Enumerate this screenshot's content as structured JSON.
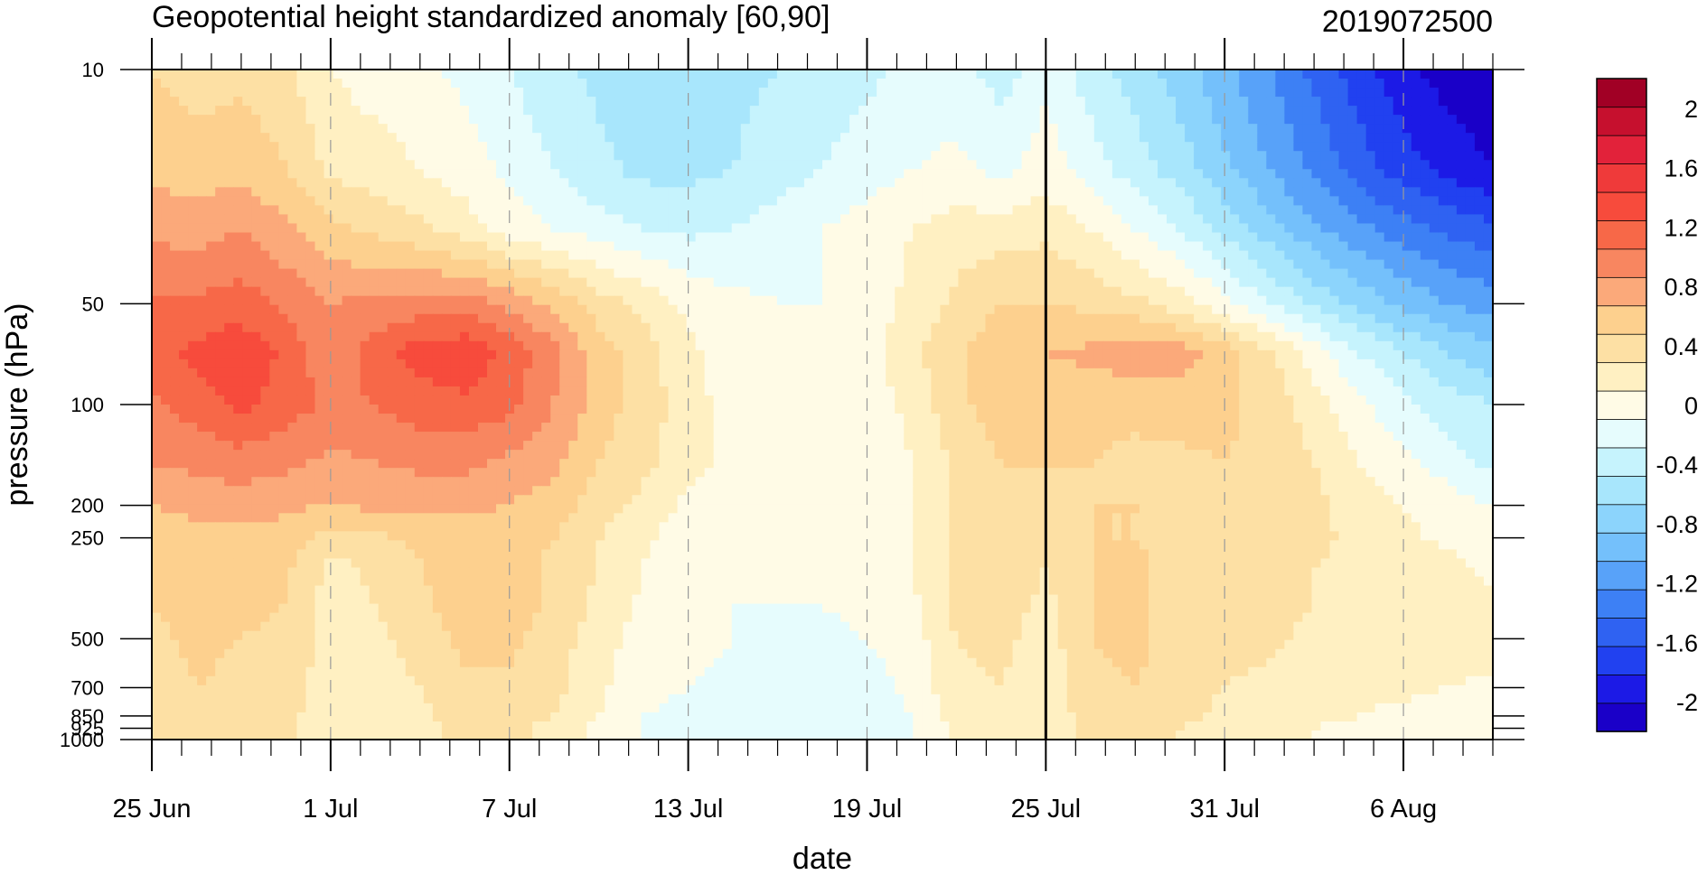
{
  "chart_data": {
    "type": "heatmap",
    "title": "Geopotential height standardized anomaly [60,90]",
    "subtitle": "2019072500",
    "xlabel": "date",
    "ylabel": "pressure (hPa)",
    "x_ticks": [
      "25 Jun",
      "1 Jul",
      "7 Jul",
      "13 Jul",
      "19 Jul",
      "25 Jul",
      "31 Jul",
      "6 Aug"
    ],
    "x_tick_days": [
      0,
      6,
      12,
      18,
      24,
      30,
      36,
      42
    ],
    "x_range_days": [
      0,
      45
    ],
    "y_ticks": [
      "10",
      "50",
      "100",
      "200",
      "250",
      "500",
      "700",
      "850",
      "925",
      "1000"
    ],
    "y_tick_values": [
      10,
      50,
      100,
      200,
      250,
      500,
      700,
      850,
      925,
      1000
    ],
    "y_range": [
      10,
      1000
    ],
    "y_scale": "log",
    "y_reversed": true,
    "forecast_marker_day": 30,
    "grid_days": [
      6,
      12,
      18,
      24,
      36,
      42
    ],
    "colorbar": {
      "levels": [
        -2.2,
        -2.0,
        -1.8,
        -1.6,
        -1.4,
        -1.2,
        -1.0,
        -0.8,
        -0.6,
        -0.4,
        -0.2,
        0,
        0.2,
        0.4,
        0.6,
        0.8,
        1.0,
        1.2,
        1.4,
        1.6,
        1.8,
        2.0,
        2.2
      ],
      "labels": [
        "-2",
        "-1.6",
        "-1.2",
        "-0.8",
        "-0.4",
        "0",
        "0.4",
        "0.8",
        "1.2",
        "1.6",
        "2"
      ],
      "label_values": [
        -2,
        -1.6,
        -1.2,
        -0.8,
        -0.4,
        0,
        0.4,
        0.8,
        1.2,
        1.6,
        2
      ],
      "colors": [
        "#1a00c8",
        "#1c1ae6",
        "#2141f0",
        "#2f62f2",
        "#3d80f5",
        "#58a2f9",
        "#74c0fb",
        "#8cd4fc",
        "#a8e6fc",
        "#c6f3fd",
        "#e6fcfd",
        "#fffbe6",
        "#fff0c2",
        "#fde0a4",
        "#fdd08e",
        "#fba97a",
        "#f88660",
        "#f76848",
        "#f74b3c",
        "#ef3a3a",
        "#e2223a",
        "#c6102e",
        "#a10025"
      ]
    },
    "columns_days": [
      0,
      1.5,
      3,
      4.5,
      6,
      7.5,
      9,
      10.5,
      12,
      13.5,
      15,
      16.5,
      18,
      19.5,
      21,
      22.5,
      24,
      25.5,
      27,
      28.5,
      30,
      31.5,
      33,
      34.5,
      36,
      37.5,
      39,
      40.5,
      42,
      43.5,
      45
    ],
    "rows_hpa": [
      10,
      20,
      30,
      50,
      70,
      100,
      150,
      200,
      250,
      300,
      400,
      500,
      700,
      850,
      925,
      1000
    ],
    "values": [
      [
        0.6,
        0.5,
        0.55,
        0.45,
        0.2,
        0.1,
        0.05,
        -0.05,
        -0.2,
        -0.35,
        -0.45,
        -0.5,
        -0.5,
        -0.45,
        -0.4,
        -0.3,
        -0.25,
        -0.15,
        -0.1,
        -0.3,
        -0.05,
        -0.3,
        -0.5,
        -0.7,
        -0.95,
        -1.2,
        -1.45,
        -1.7,
        -1.95,
        -2.1,
        -2.2
      ],
      [
        0.75,
        0.7,
        0.75,
        0.6,
        0.35,
        0.3,
        0.2,
        0.1,
        -0.05,
        -0.2,
        -0.35,
        -0.45,
        -0.45,
        -0.4,
        -0.3,
        -0.2,
        -0.1,
        0.0,
        0.05,
        -0.05,
        0.1,
        -0.1,
        -0.3,
        -0.5,
        -0.75,
        -1.0,
        -1.25,
        -1.5,
        -1.7,
        -1.85,
        -2.0
      ],
      [
        0.95,
        0.9,
        1.0,
        0.85,
        0.65,
        0.55,
        0.45,
        0.3,
        0.1,
        0.0,
        -0.1,
        -0.2,
        -0.25,
        -0.2,
        -0.1,
        0.0,
        0.1,
        0.2,
        0.3,
        0.3,
        0.35,
        0.2,
        0.0,
        -0.2,
        -0.45,
        -0.7,
        -0.95,
        -1.15,
        -1.3,
        -1.45,
        -1.55
      ],
      [
        1.25,
        1.25,
        1.3,
        1.15,
        1.0,
        1.05,
        1.1,
        1.1,
        0.95,
        0.75,
        0.5,
        0.35,
        0.15,
        0.05,
        0.0,
        0.0,
        0.1,
        0.25,
        0.45,
        0.6,
        0.6,
        0.55,
        0.45,
        0.3,
        0.05,
        -0.2,
        -0.45,
        -0.65,
        -0.85,
        -1.0,
        -1.1
      ],
      [
        1.3,
        1.45,
        1.55,
        1.35,
        1.05,
        1.3,
        1.5,
        1.55,
        1.35,
        1.05,
        0.7,
        0.5,
        0.25,
        0.1,
        0.0,
        0.0,
        0.1,
        0.35,
        0.55,
        0.75,
        0.8,
        0.85,
        0.95,
        0.9,
        0.7,
        0.45,
        0.1,
        -0.2,
        -0.4,
        -0.6,
        -0.75
      ],
      [
        1.15,
        1.3,
        1.45,
        1.3,
        1.15,
        1.2,
        1.3,
        1.35,
        1.25,
        1.0,
        0.7,
        0.5,
        0.3,
        0.1,
        0.0,
        0.0,
        0.1,
        0.25,
        0.55,
        0.7,
        0.75,
        0.65,
        0.65,
        0.7,
        0.65,
        0.5,
        0.3,
        0.05,
        -0.15,
        -0.3,
        -0.4
      ],
      [
        1.0,
        1.05,
        1.1,
        1.05,
        0.95,
        1.0,
        1.05,
        1.05,
        0.95,
        0.85,
        0.6,
        0.45,
        0.3,
        0.1,
        0.0,
        0.0,
        0.05,
        0.2,
        0.45,
        0.6,
        0.6,
        0.6,
        0.55,
        0.55,
        0.6,
        0.55,
        0.4,
        0.2,
        0.05,
        -0.1,
        -0.25
      ],
      [
        0.8,
        0.85,
        0.9,
        0.85,
        0.8,
        0.85,
        0.85,
        0.85,
        0.8,
        0.7,
        0.5,
        0.35,
        0.15,
        0.05,
        0.0,
        0.0,
        0.05,
        0.2,
        0.45,
        0.55,
        0.5,
        0.6,
        0.6,
        0.55,
        0.55,
        0.55,
        0.45,
        0.3,
        0.2,
        0.1,
        0.0
      ],
      [
        0.7,
        0.75,
        0.75,
        0.7,
        0.5,
        0.55,
        0.65,
        0.7,
        0.7,
        0.6,
        0.4,
        0.25,
        0.05,
        0.0,
        0.0,
        0.0,
        0.05,
        0.2,
        0.45,
        0.55,
        0.45,
        0.6,
        0.6,
        0.5,
        0.5,
        0.5,
        0.45,
        0.35,
        0.25,
        0.15,
        0.05
      ],
      [
        0.65,
        0.7,
        0.7,
        0.65,
        0.35,
        0.45,
        0.6,
        0.7,
        0.7,
        0.55,
        0.4,
        0.2,
        0.05,
        0.0,
        0.0,
        0.0,
        0.05,
        0.2,
        0.45,
        0.55,
        0.4,
        0.6,
        0.65,
        0.5,
        0.45,
        0.45,
        0.4,
        0.35,
        0.3,
        0.25,
        0.15
      ],
      [
        0.6,
        0.7,
        0.65,
        0.6,
        0.3,
        0.4,
        0.55,
        0.7,
        0.7,
        0.55,
        0.35,
        0.15,
        0.05,
        0.0,
        0.0,
        0.0,
        0.05,
        0.15,
        0.45,
        0.5,
        0.35,
        0.6,
        0.65,
        0.5,
        0.45,
        0.45,
        0.4,
        0.35,
        0.3,
        0.3,
        0.25
      ],
      [
        0.55,
        0.65,
        0.6,
        0.55,
        0.3,
        0.35,
        0.5,
        0.65,
        0.65,
        0.5,
        0.3,
        0.1,
        0.05,
        0.0,
        -0.05,
        -0.05,
        0.0,
        0.1,
        0.4,
        0.45,
        0.3,
        0.6,
        0.65,
        0.5,
        0.45,
        0.45,
        0.35,
        0.3,
        0.3,
        0.3,
        0.3
      ],
      [
        0.45,
        0.6,
        0.55,
        0.5,
        0.3,
        0.3,
        0.4,
        0.55,
        0.55,
        0.45,
        0.25,
        0.05,
        0.0,
        -0.05,
        -0.1,
        -0.15,
        -0.1,
        0.05,
        0.35,
        0.4,
        0.25,
        0.55,
        0.6,
        0.5,
        0.4,
        0.35,
        0.3,
        0.25,
        0.25,
        0.2,
        0.15
      ],
      [
        0.45,
        0.55,
        0.5,
        0.45,
        0.3,
        0.3,
        0.35,
        0.5,
        0.5,
        0.4,
        0.2,
        0.0,
        -0.05,
        -0.1,
        -0.15,
        -0.2,
        -0.15,
        0.0,
        0.3,
        0.35,
        0.25,
        0.5,
        0.55,
        0.45,
        0.35,
        0.3,
        0.25,
        0.2,
        0.15,
        0.1,
        0.1
      ],
      [
        0.45,
        0.5,
        0.5,
        0.45,
        0.3,
        0.3,
        0.35,
        0.45,
        0.45,
        0.35,
        0.15,
        0.0,
        -0.05,
        -0.1,
        -0.15,
        -0.2,
        -0.15,
        0.0,
        0.25,
        0.35,
        0.25,
        0.45,
        0.5,
        0.4,
        0.3,
        0.25,
        0.2,
        0.15,
        0.1,
        0.1,
        0.05
      ],
      [
        0.45,
        0.5,
        0.45,
        0.4,
        0.3,
        0.3,
        0.35,
        0.45,
        0.45,
        0.35,
        0.15,
        0.0,
        -0.05,
        -0.1,
        -0.15,
        -0.2,
        -0.15,
        0.0,
        0.25,
        0.3,
        0.25,
        0.45,
        0.5,
        0.4,
        0.3,
        0.25,
        0.2,
        0.15,
        0.1,
        0.05,
        0.05
      ]
    ]
  }
}
